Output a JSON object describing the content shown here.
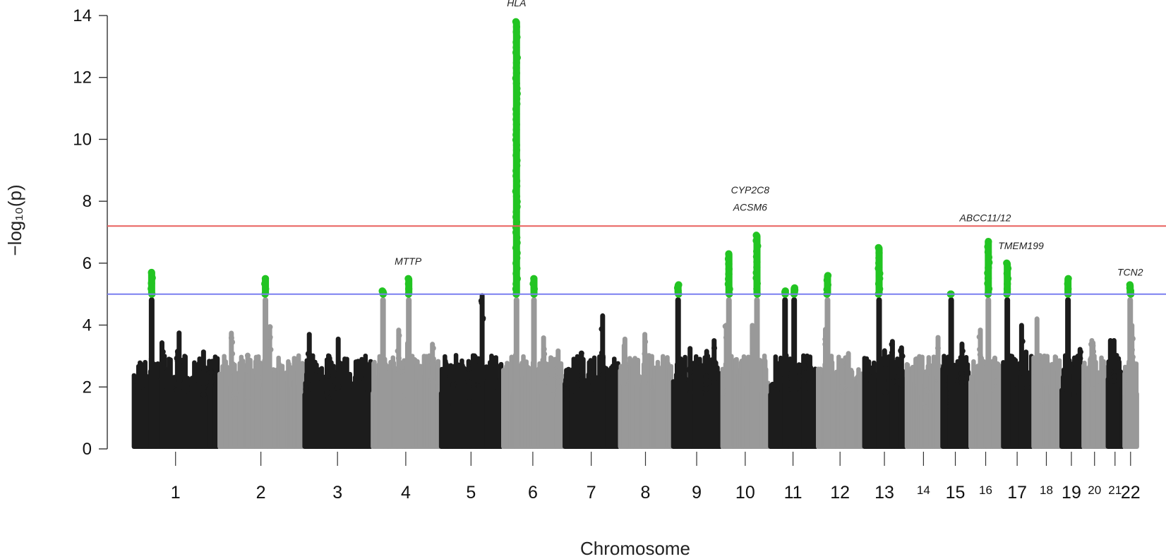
{
  "chart_data": {
    "type": "scatter",
    "subtype": "manhattan",
    "title": "",
    "xlabel": "Chromosome",
    "ylabel": "−log₁₀(p)",
    "ylim": [
      0,
      14
    ],
    "yticks": [
      0,
      2,
      4,
      6,
      8,
      10,
      12,
      14
    ],
    "grid": false,
    "legend": "none",
    "thresholds": [
      {
        "name": "genome-wide",
        "value": 7.2,
        "color": "#e8605f"
      },
      {
        "name": "suggestive",
        "value": 5.0,
        "color": "#7a7ff0"
      }
    ],
    "colors": {
      "dark": "#1c1c1c",
      "light": "#999999",
      "highlight": "#22c422"
    },
    "chromosomes": [
      {
        "label": "1",
        "start": 0,
        "end": 11.3,
        "shade": "dark",
        "max": 5.7,
        "hits": [
          {
            "at": 2.5,
            "max": 5.7
          }
        ]
      },
      {
        "label": "2",
        "start": 11.3,
        "end": 22.5,
        "shade": "light",
        "max": 5.5,
        "hits": [
          {
            "at": 6.2,
            "max": 5.5
          }
        ]
      },
      {
        "label": "3",
        "start": 22.5,
        "end": 31.5,
        "shade": "dark",
        "max": 3.7,
        "hits": []
      },
      {
        "label": "4",
        "start": 31.5,
        "end": 40.5,
        "shade": "light",
        "max": 5.5,
        "hits": [
          {
            "at": 1.5,
            "max": 5.1
          },
          {
            "at": 4.9,
            "max": 5.5
          }
        ]
      },
      {
        "label": "5",
        "start": 40.5,
        "end": 48.7,
        "shade": "dark",
        "max": 5.0,
        "hits": []
      },
      {
        "label": "6",
        "start": 48.7,
        "end": 56.8,
        "shade": "light",
        "max": 13.8,
        "hits": [
          {
            "at": 1.9,
            "max": 13.8
          },
          {
            "at": 4.2,
            "max": 5.5
          }
        ]
      },
      {
        "label": "7",
        "start": 56.8,
        "end": 64.1,
        "shade": "dark",
        "max": 4.3,
        "hits": []
      },
      {
        "label": "8",
        "start": 64.1,
        "end": 71.1,
        "shade": "light",
        "max": 3.7,
        "hits": []
      },
      {
        "label": "9",
        "start": 71.1,
        "end": 77.6,
        "shade": "dark",
        "max": 5.3,
        "hits": [
          {
            "at": 0.8,
            "max": 5.3
          }
        ]
      },
      {
        "label": "10",
        "start": 77.6,
        "end": 83.9,
        "shade": "light",
        "max": 6.9,
        "hits": [
          {
            "at": 1.0,
            "max": 6.3
          },
          {
            "at": 4.7,
            "max": 6.9
          }
        ]
      },
      {
        "label": "11",
        "start": 83.9,
        "end": 90.2,
        "shade": "dark",
        "max": 5.2,
        "hits": [
          {
            "at": 2.1,
            "max": 5.1
          },
          {
            "at": 3.3,
            "max": 5.2
          }
        ]
      },
      {
        "label": "12",
        "start": 90.2,
        "end": 96.3,
        "shade": "light",
        "max": 5.6,
        "hits": [
          {
            "at": 1.4,
            "max": 5.6
          }
        ]
      },
      {
        "label": "13",
        "start": 96.3,
        "end": 101.9,
        "shade": "dark",
        "max": 6.5,
        "hits": [
          {
            "at": 2.1,
            "max": 6.5
          }
        ]
      },
      {
        "label": "14",
        "start": 101.9,
        "end": 106.6,
        "shade": "light",
        "max": 3.6,
        "hits": []
      },
      {
        "label": "15",
        "start": 106.6,
        "end": 110.3,
        "shade": "dark",
        "max": 5.0,
        "hits": [
          {
            "at": 1.3,
            "max": 5.0
          }
        ]
      },
      {
        "label": "16",
        "start": 110.3,
        "end": 114.6,
        "shade": "light",
        "max": 6.7,
        "hits": [
          {
            "at": 2.5,
            "max": 6.7
          }
        ]
      },
      {
        "label": "17",
        "start": 114.6,
        "end": 118.6,
        "shade": "dark",
        "max": 6.0,
        "hits": [
          {
            "at": 0.7,
            "max": 6.0
          }
        ]
      },
      {
        "label": "18",
        "start": 118.6,
        "end": 122.3,
        "shade": "light",
        "max": 4.2,
        "hits": []
      },
      {
        "label": "19",
        "start": 122.3,
        "end": 125.2,
        "shade": "dark",
        "max": 5.5,
        "hits": [
          {
            "at": 1.0,
            "max": 5.5
          }
        ]
      },
      {
        "label": "20",
        "start": 125.2,
        "end": 128.4,
        "shade": "light",
        "max": 3.5,
        "hits": []
      },
      {
        "label": "21",
        "start": 128.4,
        "end": 130.6,
        "shade": "dark",
        "max": 3.5,
        "hits": []
      },
      {
        "label": "22",
        "start": 130.6,
        "end": 132.5,
        "shade": "light",
        "max": 5.3,
        "hits": [
          {
            "at": 0.9,
            "max": 5.3
          }
        ]
      }
    ],
    "annotations": [
      {
        "text": "HLA",
        "x": 50.6,
        "y": 14.3
      },
      {
        "text": "CYP2C8",
        "x": 81.4,
        "y": 8.25
      },
      {
        "text": "ACSM6",
        "x": 81.4,
        "y": 7.7
      },
      {
        "text": "MTTP",
        "x": 36.3,
        "y": 5.95
      },
      {
        "text": "ABCC11/12",
        "x": 112.4,
        "y": 7.35
      },
      {
        "text": "TMEM199",
        "x": 117.1,
        "y": 6.45
      },
      {
        "text": "TCN2",
        "x": 131.5,
        "y": 5.6
      }
    ]
  }
}
